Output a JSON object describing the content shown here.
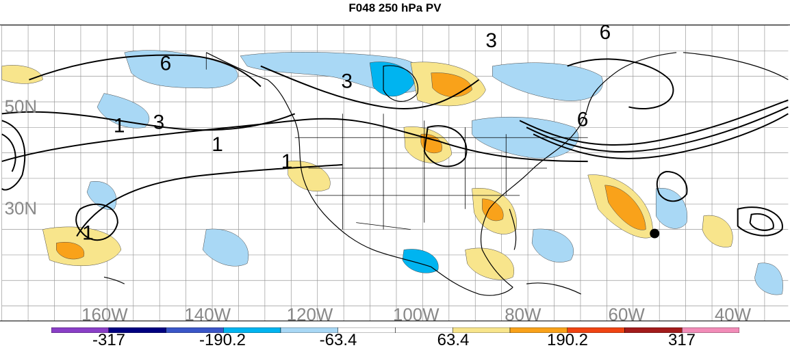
{
  "title": "F048 250 hPa PV",
  "longitude_labels": [
    "160W",
    "140W",
    "120W",
    "100W",
    "80W",
    "60W",
    "40W"
  ],
  "latitude_labels": [
    "50N",
    "30N"
  ],
  "contour_labels": [
    "6",
    "3",
    "1",
    "1",
    "1",
    "3",
    "3",
    "6",
    "6",
    "1"
  ],
  "colorbar": {
    "colors": [
      "#8a3fc7",
      "#000080",
      "#3a56c8",
      "#00b4f0",
      "#a9d8f5",
      "#ffffff",
      "#ffffff",
      "#f8e58c",
      "#f9a21a",
      "#f04412",
      "#a31b1b",
      "#f28cb8"
    ],
    "labels": [
      "-317",
      "-190.2",
      "-63.4",
      "63.4",
      "190.2",
      "317"
    ]
  },
  "marker": "storm-center"
}
